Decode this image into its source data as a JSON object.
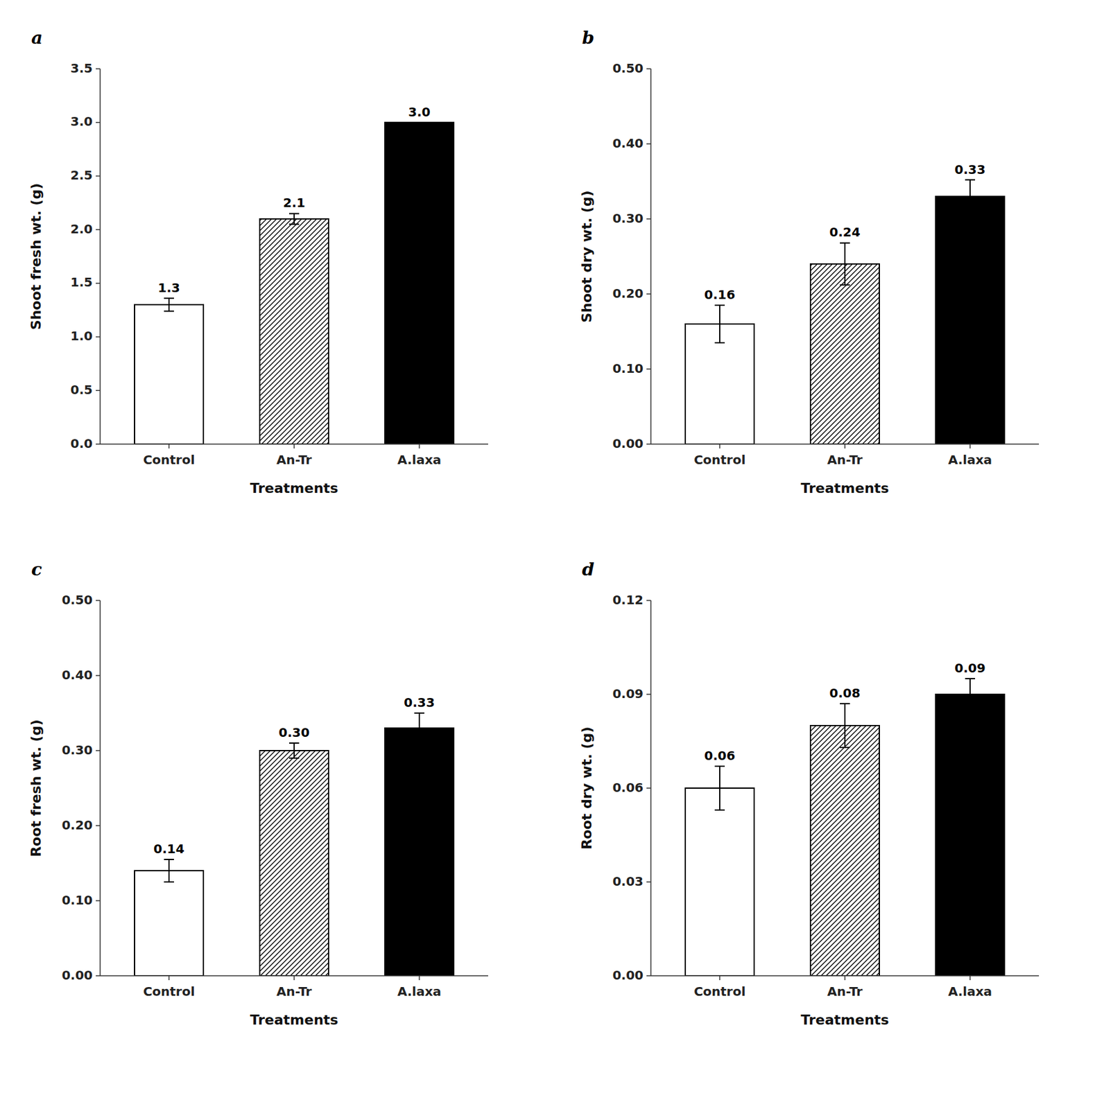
{
  "chart_data": [
    {
      "type": "bar",
      "title": "a",
      "xlabel": "Treatments",
      "ylabel": "Shoot fresh wt. (g)",
      "categories": [
        "Control",
        "An-Tr",
        "A.laxa"
      ],
      "values": [
        1.3,
        2.1,
        3.0
      ],
      "errors": [
        0.06,
        0.05,
        0.0
      ],
      "value_labels": [
        "1.3",
        "2.1",
        "3.0"
      ],
      "data_labels": true,
      "colors": [
        "white",
        "white",
        "black"
      ],
      "ylim": [
        0,
        3.5
      ],
      "yticks": [
        {
          "value": 0.0,
          "label": "0.0"
        },
        0.5,
        {
          "value": 1.0,
          "label": "1.0"
        },
        1.5,
        {
          "value": 2.0,
          "label": "2.0"
        },
        2.5,
        {
          "value": 3.0,
          "label": "3.0"
        },
        3.5
      ],
      "grid": false
    },
    {
      "type": "bar",
      "title": "b",
      "xlabel": "Treatments",
      "ylabel": "Shoot dry wt. (g)",
      "categories": [
        "Control",
        "An-Tr",
        "A.laxa"
      ],
      "values": [
        0.16,
        0.24,
        0.33
      ],
      "errors": [
        0.025,
        0.028,
        0.022
      ],
      "value_labels": [
        "0.16",
        "0.24",
        "0.33"
      ],
      "data_labels": true,
      "colors": [
        "white",
        "white",
        "black"
      ],
      "ylim": [
        0,
        0.5
      ],
      "yticks": [
        {
          "value": 0.0,
          "label": "0.00"
        },
        {
          "value": 0.1,
          "label": "0.10"
        },
        {
          "value": 0.2,
          "label": "0.20"
        },
        {
          "value": 0.3,
          "label": "0.30"
        },
        {
          "value": 0.4,
          "label": "0.40"
        },
        {
          "value": 0.5,
          "label": "0.50"
        }
      ],
      "grid": false
    },
    {
      "type": "bar",
      "title": "c",
      "xlabel": "Treatments",
      "ylabel": "Root fresh wt. (g)",
      "categories": [
        "Control",
        "An-Tr",
        "A.laxa"
      ],
      "values": [
        0.14,
        0.3,
        0.33
      ],
      "errors": [
        0.015,
        0.01,
        0.02
      ],
      "value_labels": [
        "0.14",
        "0.30",
        "0.33"
      ],
      "data_labels": true,
      "colors": [
        "white",
        "white",
        "black"
      ],
      "ylim": [
        0,
        0.5
      ],
      "yticks": [
        {
          "value": 0.0,
          "label": "0.00"
        },
        {
          "value": 0.1,
          "label": "0.10"
        },
        {
          "value": 0.2,
          "label": "0.20"
        },
        {
          "value": 0.3,
          "label": "0.30"
        },
        {
          "value": 0.4,
          "label": "0.40"
        },
        {
          "value": 0.5,
          "label": "0.50"
        }
      ],
      "grid": false
    },
    {
      "type": "bar",
      "title": "d",
      "xlabel": "Treatments",
      "ylabel": "Root dry wt. (g)",
      "categories": [
        "Control",
        "An-Tr",
        "A.laxa"
      ],
      "values": [
        0.06,
        0.08,
        0.09
      ],
      "errors": [
        0.007,
        0.007,
        0.005
      ],
      "value_labels": [
        "0.06",
        "0.08",
        "0.09"
      ],
      "data_labels": true,
      "colors": [
        "white",
        "white",
        "black"
      ],
      "ylim": [
        0,
        0.12
      ],
      "yticks": [
        {
          "value": 0.0,
          "label": "0.00"
        },
        0.03,
        0.06,
        0.09,
        0.12
      ],
      "grid": false
    }
  ]
}
